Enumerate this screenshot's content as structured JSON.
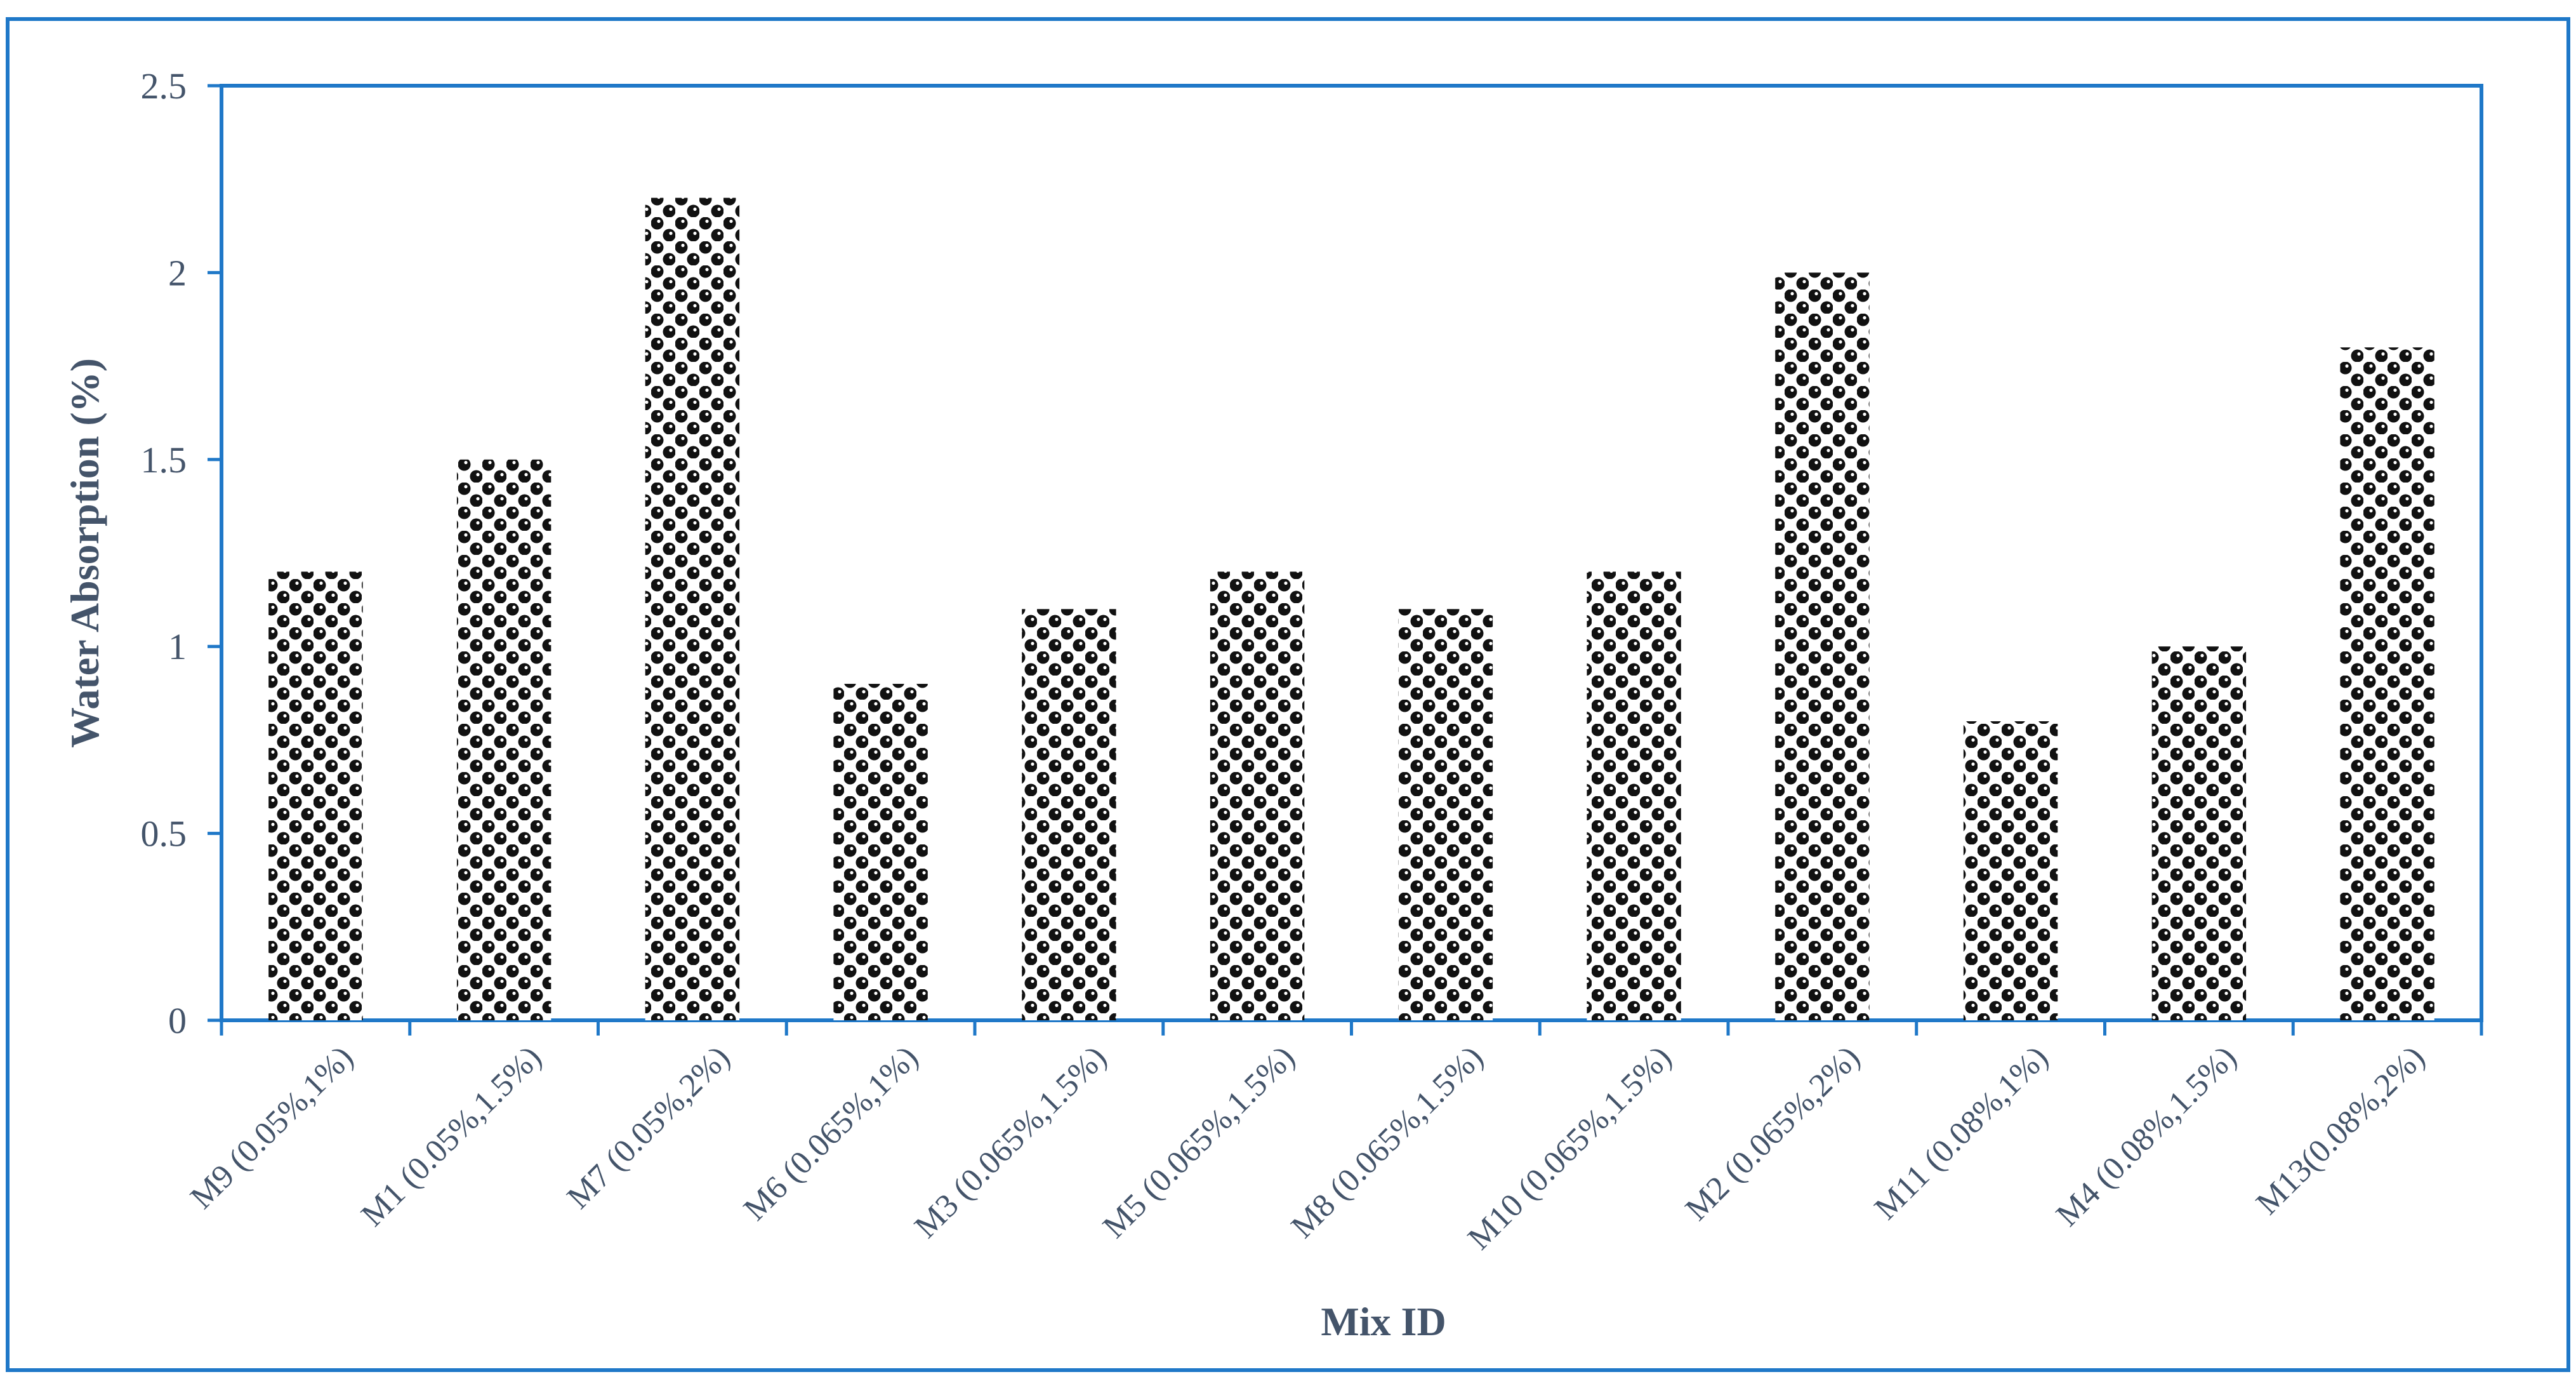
{
  "colors": {
    "frame": "#1f78c8",
    "text": "#44546a",
    "bar_dark": "#111111",
    "bar_light": "#ffffff"
  },
  "chart_data": {
    "type": "bar",
    "title": "",
    "xlabel": "Mix ID",
    "ylabel": "Water Absorption (%)",
    "ylim": [
      0,
      2.5
    ],
    "yticks": [
      "0",
      "0.5",
      "1",
      "1.5",
      "2",
      "2.5"
    ],
    "grid": false,
    "legend": "none",
    "bar_pattern": "black-white circle checker",
    "categories": [
      "M9 (0.05%,1%)",
      "M1 (0.05%,1.5%)",
      "M7 (0.05%,2%)",
      "M6 (0.065%,1%)",
      "M3 (0.065%,1.5%)",
      "M5 (0.065%,1.5%)",
      "M8 (0.065%,1.5%)",
      "M10 (0.065%,1.5%)",
      "M2 (0.065%,2%)",
      "M11 (0.08%,1%)",
      "M4 (0.08%,1.5%)",
      "M13(0.08%,2%)"
    ],
    "values": [
      1.2,
      1.5,
      2.2,
      0.9,
      1.1,
      1.2,
      1.1,
      1.2,
      2.0,
      0.8,
      1.0,
      1.8
    ]
  }
}
